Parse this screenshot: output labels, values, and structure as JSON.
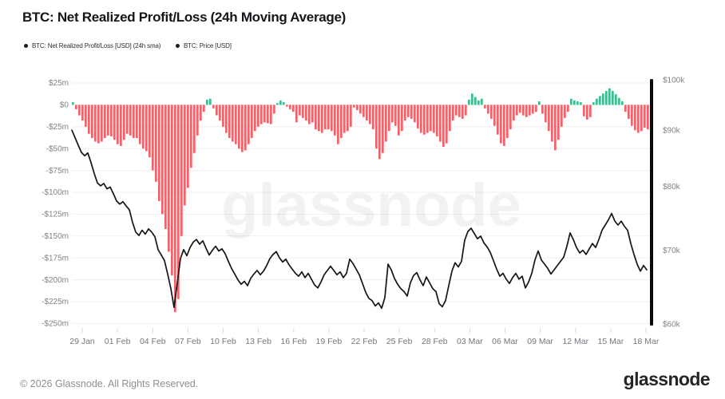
{
  "header": {
    "title": "BTC: Net Realized Profit/Loss (24h Moving Average)",
    "legend": [
      {
        "label": "BTC: Net Realized Profit/Loss [USD] (24h sma)",
        "dot_color": "#1a1d24"
      },
      {
        "label": "BTC: Price [USD]",
        "dot_color": "#1a1d24"
      }
    ]
  },
  "watermark": "glassnode",
  "footer": {
    "copyright": "© 2026 Glassnode. All Rights Reserved.",
    "brand": "glassnode"
  },
  "chart_data": {
    "type": "combo",
    "title": "BTC: Net Realized Profit/Loss (24h Moving Average)",
    "colors": {
      "bar_positive": "#3ebd8d",
      "bar_negative": "#f0636b",
      "price_line": "#141519",
      "grid": "#efefef",
      "axis_bar": "#0a0a0a",
      "tick_text": "#7f8287",
      "x_tick_mark": "#d9d9d9",
      "watermark": "#000000"
    },
    "x_axis": {
      "unit": "date",
      "labels": [
        "29 Jan",
        "01 Feb",
        "04 Feb",
        "07 Feb",
        "10 Feb",
        "13 Feb",
        "16 Feb",
        "19 Feb",
        "22 Feb",
        "25 Feb",
        "28 Feb",
        "03 Mar",
        "06 Mar",
        "09 Mar",
        "12 Mar",
        "15 Mar",
        "18 Mar"
      ]
    },
    "left_axis": {
      "unit": "USD millions",
      "tick_labels": [
        "$25m",
        "$0",
        "-$25m",
        "-$50m",
        "-$75m",
        "-$100m",
        "-$125m",
        "-$150m",
        "-$175m",
        "-$200m",
        "-$225m",
        "-$250m"
      ],
      "values_m": [
        25,
        0,
        -25,
        -50,
        -75,
        -100,
        -125,
        -150,
        -175,
        -200,
        -225,
        -250
      ],
      "range_m": [
        -250,
        25
      ]
    },
    "right_axis": {
      "unit": "USD thousands",
      "scale": "log",
      "tick_labels": [
        "$100k",
        "$90k",
        "$80k",
        "$70k",
        "$60k"
      ],
      "values_k": [
        100,
        90,
        80,
        70,
        60
      ],
      "range_k": [
        60,
        100
      ]
    },
    "series": [
      {
        "name": "BTC: Net Realized Profit/Loss [USD] (24h sma)",
        "type": "bar",
        "axis": "left",
        "unit": "$m",
        "values": [
          3,
          -5,
          -12,
          -18,
          -25,
          -33,
          -38,
          -42,
          -44,
          -42,
          -38,
          -35,
          -36,
          -40,
          -45,
          -47,
          -40,
          -33,
          -35,
          -38,
          -38,
          -45,
          -50,
          -53,
          -60,
          -75,
          -88,
          -110,
          -125,
          -142,
          -168,
          -195,
          -237,
          -222,
          -150,
          -115,
          -95,
          -72,
          -55,
          -35,
          -18,
          -8,
          6,
          7,
          -4,
          -12,
          -18,
          -25,
          -32,
          -38,
          -42,
          -45,
          -50,
          -54,
          -52,
          -45,
          -38,
          -30,
          -25,
          -22,
          -20,
          -21,
          -22,
          -10,
          2,
          5,
          3,
          -2,
          -5,
          -8,
          -20,
          -12,
          -15,
          -18,
          -22,
          -20,
          -28,
          -30,
          -32,
          -28,
          -28,
          -30,
          -35,
          -45,
          -38,
          -32,
          -30,
          -25,
          -3,
          -6,
          -10,
          -14,
          -18,
          -22,
          -28,
          -50,
          -62,
          -55,
          -42,
          -30,
          -20,
          -24,
          -35,
          -30,
          -18,
          -14,
          -16,
          -20,
          -27,
          -32,
          -34,
          -32,
          -30,
          -32,
          -36,
          -42,
          -48,
          -44,
          -30,
          -18,
          -12,
          -14,
          -16,
          -12,
          6,
          13,
          9,
          5,
          7,
          -4,
          -10,
          -16,
          -24,
          -34,
          -44,
          -47,
          -38,
          -28,
          -18,
          -12,
          -9,
          -12,
          -14,
          -12,
          -10,
          -8,
          4,
          -10,
          -20,
          -30,
          -42,
          -52,
          -40,
          -25,
          -15,
          -8,
          7,
          5,
          4,
          3,
          -13,
          -17,
          -14,
          3,
          7,
          10,
          13,
          16,
          19,
          16,
          12,
          8,
          4,
          -8,
          -16,
          -24,
          -29,
          -32,
          -30,
          -26,
          -28
        ]
      },
      {
        "name": "BTC: Price [USD]",
        "type": "line",
        "axis": "right",
        "unit": "$k",
        "values": [
          90.0,
          88.6,
          87.2,
          85.9,
          85.3,
          85.8,
          84.1,
          82.2,
          80.6,
          80.1,
          80.5,
          79.6,
          79.9,
          78.8,
          77.6,
          77.1,
          77.5,
          76.8,
          76.2,
          74.2,
          72.7,
          72.2,
          73.0,
          72.4,
          73.2,
          72.7,
          72.0,
          70.1,
          69.3,
          68.5,
          66.6,
          64.6,
          62.1,
          65.3,
          68.8,
          70.1,
          69.2,
          70.4,
          71.2,
          71.6,
          70.9,
          71.4,
          70.3,
          69.3,
          70.0,
          70.6,
          69.9,
          70.2,
          69.5,
          68.4,
          67.4,
          66.6,
          65.8,
          65.2,
          65.6,
          65.0,
          66.0,
          66.6,
          67.1,
          66.5,
          67.0,
          67.8,
          68.8,
          69.4,
          69.8,
          68.9,
          68.3,
          68.7,
          67.9,
          67.3,
          66.7,
          66.3,
          66.9,
          66.1,
          66.7,
          65.9,
          65.1,
          64.7,
          65.5,
          66.5,
          67.1,
          67.7,
          67.1,
          66.5,
          66.9,
          66.1,
          66.7,
          68.7,
          68.1,
          67.3,
          66.5,
          65.3,
          64.1,
          63.3,
          63.0,
          62.3,
          62.7,
          62.0,
          63.4,
          68.0,
          67.2,
          66.0,
          65.2,
          64.6,
          64.2,
          63.6,
          65.4,
          66.4,
          66.8,
          65.8,
          65.0,
          66.2,
          65.4,
          64.6,
          64.2,
          62.6,
          62.2,
          63.0,
          65.0,
          67.0,
          68.2,
          67.6,
          68.4,
          71.5,
          72.8,
          73.3,
          72.5,
          71.7,
          72.1,
          71.1,
          70.5,
          69.7,
          68.5,
          67.3,
          66.3,
          66.7,
          65.9,
          65.3,
          66.1,
          66.7,
          65.9,
          66.3,
          64.7,
          65.5,
          66.7,
          68.6,
          69.9,
          68.6,
          68.0,
          67.4,
          66.6,
          67.2,
          67.8,
          68.4,
          69.0,
          70.6,
          72.6,
          71.6,
          70.4,
          69.6,
          70.0,
          69.4,
          70.2,
          71.0,
          70.4,
          71.6,
          73.0,
          73.8,
          74.6,
          75.6,
          74.4,
          73.8,
          74.4,
          73.6,
          73.0,
          71.0,
          69.4,
          68.0,
          67.0,
          67.8,
          67.2
        ]
      }
    ]
  }
}
